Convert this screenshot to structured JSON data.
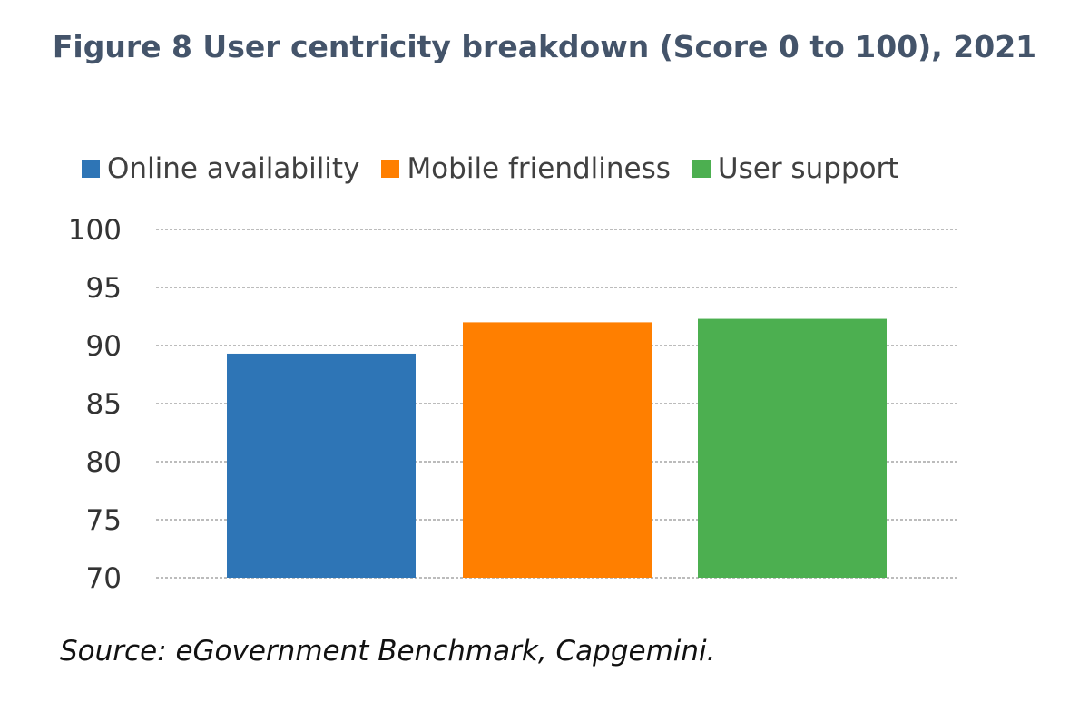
{
  "figure": {
    "title": "Figure 8 User centricity breakdown (Score 0 to 100), 2021",
    "source": "Source: eGovernment Benchmark, Capgemini."
  },
  "chart_data": {
    "type": "bar",
    "title": "Figure 8 User centricity breakdown (Score 0 to 100), 2021",
    "xlabel": "",
    "ylabel": "",
    "ylim": [
      70,
      100
    ],
    "yticks": [
      70,
      75,
      80,
      85,
      90,
      95,
      100
    ],
    "grid": true,
    "legend_placement": "top",
    "categories": [
      "Online availability",
      "Mobile friendliness",
      "User support"
    ],
    "values": [
      89.3,
      92.0,
      92.3
    ],
    "colors": [
      "#2e75b6",
      "#ff7f00",
      "#4caf50"
    ],
    "gridline_color": "#a6a6a6"
  }
}
